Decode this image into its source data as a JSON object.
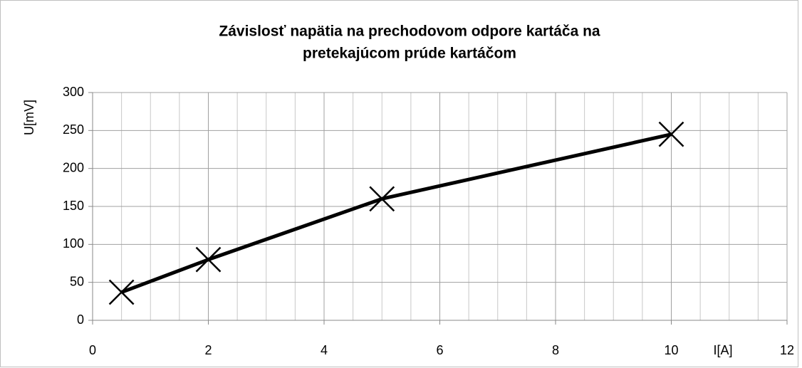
{
  "chart_data": {
    "type": "line",
    "title": [
      "Závislosť napätia na prechodovom odpore kartáča  na",
      "pretekajúcom prúde kartáčom"
    ],
    "x_label": "I[A]",
    "y_label": "U[mV]",
    "x": [
      0.5,
      2,
      5,
      10
    ],
    "series": [
      {
        "name": "U",
        "color": "#000000",
        "values": [
          37,
          80,
          160,
          245
        ]
      }
    ],
    "marker": "x",
    "xlim": [
      0,
      12
    ],
    "xticks": [
      0,
      2,
      4,
      6,
      8,
      10,
      12
    ],
    "x_minor_grid": [
      0.5,
      1,
      1.5,
      2.5,
      3,
      3.5,
      4.5,
      5,
      5.5,
      6.5,
      7,
      7.5,
      8.5,
      9,
      9.5,
      10.5,
      11,
      11.5
    ],
    "ylim": [
      0,
      300
    ],
    "yticks": [
      0,
      50,
      100,
      150,
      200,
      250,
      300
    ],
    "grid": true
  }
}
